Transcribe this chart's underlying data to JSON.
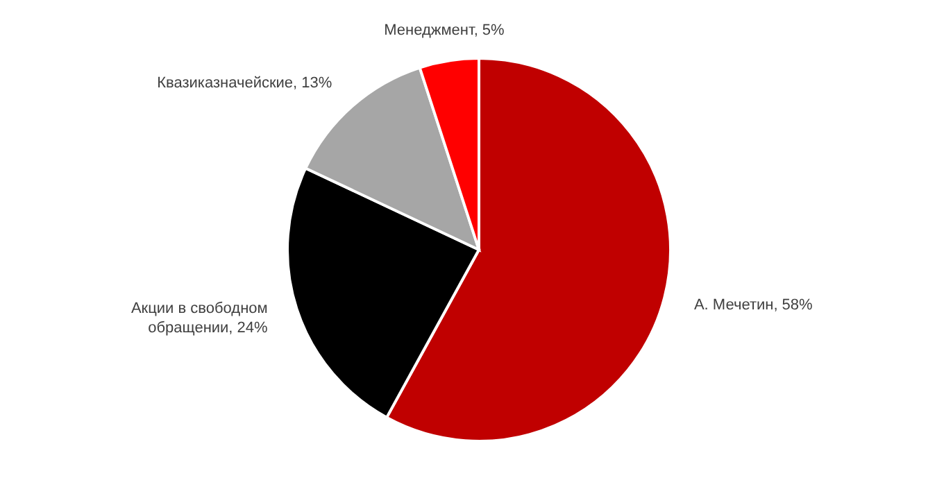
{
  "chart_data": {
    "type": "pie",
    "categories": [
      "А. Мечетин",
      "Акции в свободном обращении",
      "Квазиказначейские",
      "Менеджмент"
    ],
    "values": [
      58,
      24,
      13,
      5
    ],
    "colors": [
      "#c00000",
      "#000000",
      "#a6a6a6",
      "#ff0000"
    ],
    "value_labels": [
      "58%",
      "24%",
      "13%",
      "5%"
    ],
    "legend": false
  }
}
